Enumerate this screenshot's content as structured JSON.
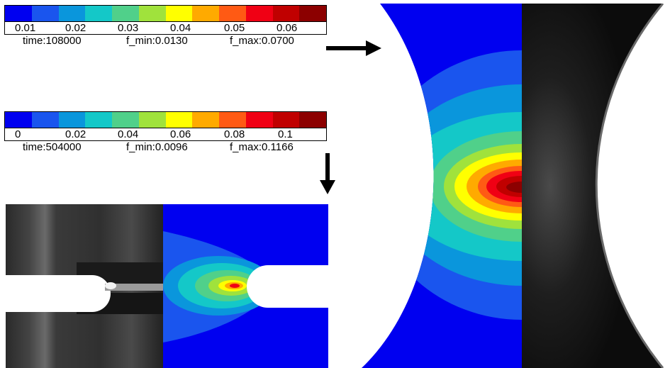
{
  "colorbar_colors": [
    "#0000f0",
    "#1a55ee",
    "#0a96dc",
    "#14c8c8",
    "#50d08a",
    "#a0e23c",
    "#ffff00",
    "#ffaa00",
    "#ff5a14",
    "#f00014",
    "#c00000",
    "#8c0000"
  ],
  "legend_top": {
    "ticks": [
      "0.01",
      "0.02",
      "0.03",
      "0.04",
      "0.05",
      "0.06"
    ],
    "time": "time:108000",
    "f_min": "f_min:0.0130",
    "f_max": "f_max:0.0700"
  },
  "legend_bottom": {
    "ticks": [
      "0",
      "0.02",
      "0.04",
      "0.06",
      "0.08",
      "0.1"
    ],
    "time": "time:504000",
    "f_min": "f_min:0.0096",
    "f_max": "f_max:0.1166"
  }
}
